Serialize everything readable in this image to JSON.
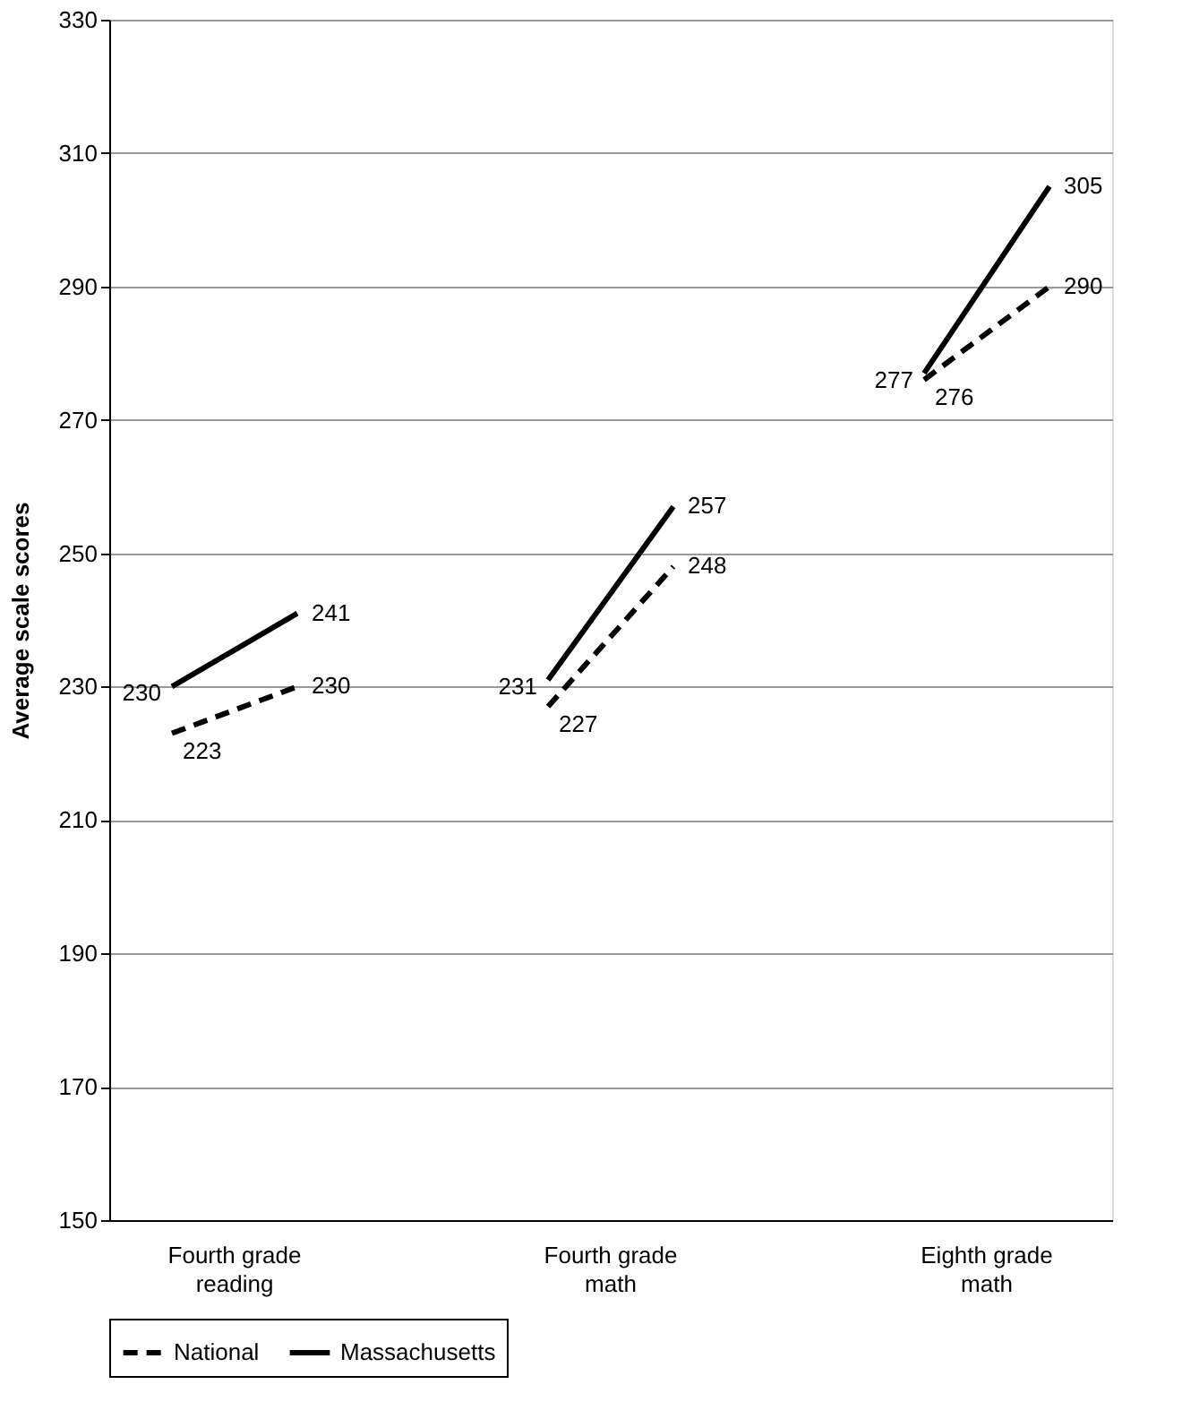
{
  "chart_data": {
    "type": "line",
    "ylabel": "Average scale scores",
    "categories": [
      null,
      null,
      null,
      null,
      null,
      null,
      null,
      null
    ],
    "ylim": [
      150,
      330
    ],
    "yticks": [
      150,
      170,
      190,
      210,
      230,
      250,
      270,
      290,
      310,
      330
    ],
    "series": [
      {
        "name": "National",
        "color": "#000000",
        "line_style": "dashed",
        "values": [
          223,
          230,
          null,
          227,
          248,
          null,
          276,
          290
        ]
      },
      {
        "name": "Massachusetts",
        "color": "#000000",
        "line_style": "solid",
        "values": [
          230,
          241,
          null,
          231,
          257,
          null,
          277,
          305
        ]
      }
    ],
    "annotations": [
      "Fourth grade\nreading",
      "Fourth grade\nmath",
      "Eighth grade\nmath"
    ],
    "data_labels": true,
    "grid": "y",
    "legend": "bottom",
    "marker": "none"
  }
}
